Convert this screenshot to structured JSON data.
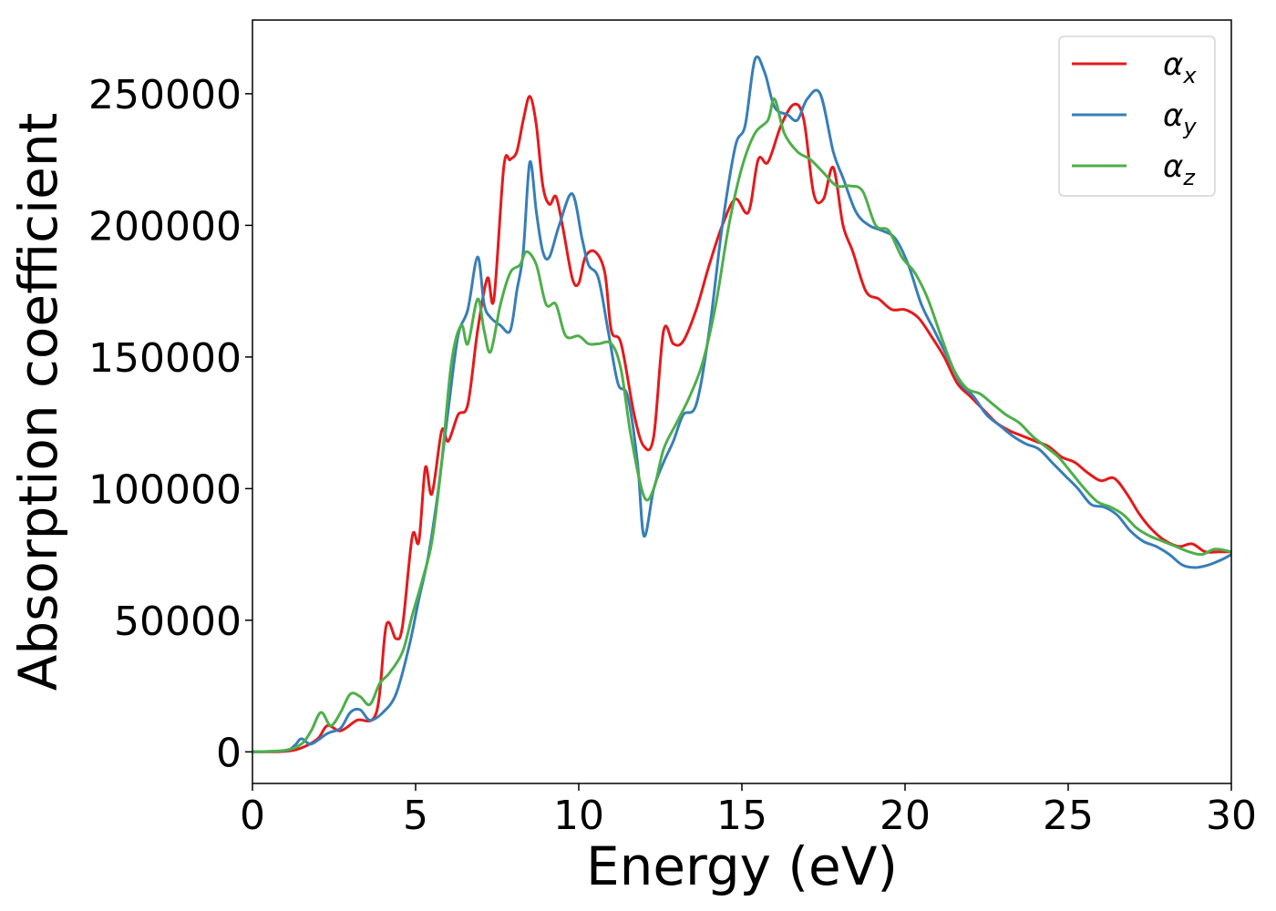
{
  "chart_data": {
    "type": "line",
    "title": "",
    "xlabel": "Energy (eV)",
    "ylabel": "Absorption coefficient",
    "xlim": [
      0,
      30
    ],
    "ylim": [
      -12000,
      278000
    ],
    "xticks": [
      0,
      5,
      10,
      15,
      20,
      25,
      30
    ],
    "yticks": [
      0,
      50000,
      100000,
      150000,
      200000,
      250000
    ],
    "grid": false,
    "legend_position": "top-right",
    "series": [
      {
        "name": "α",
        "subscript": "x",
        "color": "#e41a1c",
        "points": [
          [
            0,
            0
          ],
          [
            1,
            200
          ],
          [
            1.5,
            1500
          ],
          [
            2,
            5000
          ],
          [
            2.3,
            10000
          ],
          [
            2.7,
            8000
          ],
          [
            3.2,
            12000
          ],
          [
            3.8,
            15000
          ],
          [
            4.1,
            48000
          ],
          [
            4.4,
            43000
          ],
          [
            4.6,
            48000
          ],
          [
            4.9,
            82000
          ],
          [
            5.1,
            80000
          ],
          [
            5.3,
            108000
          ],
          [
            5.5,
            98000
          ],
          [
            5.8,
            122000
          ],
          [
            6.0,
            118000
          ],
          [
            6.3,
            128000
          ],
          [
            6.6,
            132000
          ],
          [
            6.9,
            160000
          ],
          [
            7.2,
            180000
          ],
          [
            7.4,
            172000
          ],
          [
            7.7,
            222000
          ],
          [
            7.9,
            225000
          ],
          [
            8.1,
            228000
          ],
          [
            8.3,
            240000
          ],
          [
            8.5,
            249000
          ],
          [
            8.7,
            238000
          ],
          [
            8.9,
            215000
          ],
          [
            9.1,
            208000
          ],
          [
            9.3,
            211000
          ],
          [
            9.5,
            200000
          ],
          [
            9.8,
            180000
          ],
          [
            10.0,
            178000
          ],
          [
            10.2,
            188000
          ],
          [
            10.5,
            190000
          ],
          [
            10.8,
            182000
          ],
          [
            11.0,
            160000
          ],
          [
            11.3,
            155000
          ],
          [
            11.7,
            128000
          ],
          [
            12.0,
            116000
          ],
          [
            12.3,
            120000
          ],
          [
            12.6,
            160000
          ],
          [
            12.9,
            155000
          ],
          [
            13.2,
            156000
          ],
          [
            13.6,
            168000
          ],
          [
            14.0,
            185000
          ],
          [
            14.4,
            200000
          ],
          [
            14.8,
            210000
          ],
          [
            15.2,
            205000
          ],
          [
            15.5,
            225000
          ],
          [
            15.8,
            224000
          ],
          [
            16.2,
            238000
          ],
          [
            16.6,
            246000
          ],
          [
            16.9,
            240000
          ],
          [
            17.2,
            212000
          ],
          [
            17.5,
            210000
          ],
          [
            17.8,
            222000
          ],
          [
            18.1,
            200000
          ],
          [
            18.4,
            190000
          ],
          [
            18.8,
            175000
          ],
          [
            19.2,
            172000
          ],
          [
            19.6,
            168000
          ],
          [
            20.0,
            168000
          ],
          [
            20.4,
            165000
          ],
          [
            20.8,
            158000
          ],
          [
            21.2,
            150000
          ],
          [
            21.6,
            140000
          ],
          [
            22.0,
            135000
          ],
          [
            22.4,
            130000
          ],
          [
            22.8,
            125000
          ],
          [
            23.2,
            122000
          ],
          [
            23.6,
            120000
          ],
          [
            24.0,
            118000
          ],
          [
            24.4,
            116000
          ],
          [
            24.8,
            112000
          ],
          [
            25.2,
            110000
          ],
          [
            25.6,
            106000
          ],
          [
            26.0,
            103000
          ],
          [
            26.4,
            104000
          ],
          [
            26.8,
            98000
          ],
          [
            27.2,
            90000
          ],
          [
            27.6,
            84000
          ],
          [
            28.0,
            80000
          ],
          [
            28.4,
            78000
          ],
          [
            28.8,
            79000
          ],
          [
            29.2,
            76000
          ],
          [
            29.6,
            76000
          ],
          [
            30,
            76000
          ]
        ]
      },
      {
        "name": "α",
        "subscript": "y",
        "color": "#377eb8",
        "points": [
          [
            0,
            0
          ],
          [
            1,
            500
          ],
          [
            1.3,
            2500
          ],
          [
            1.5,
            5000
          ],
          [
            1.8,
            3000
          ],
          [
            2.3,
            7000
          ],
          [
            2.7,
            9000
          ],
          [
            3.0,
            15000
          ],
          [
            3.3,
            16000
          ],
          [
            3.6,
            12000
          ],
          [
            4.0,
            15000
          ],
          [
            4.4,
            22000
          ],
          [
            4.8,
            40000
          ],
          [
            5.1,
            58000
          ],
          [
            5.4,
            75000
          ],
          [
            5.7,
            100000
          ],
          [
            6.0,
            130000
          ],
          [
            6.3,
            158000
          ],
          [
            6.6,
            168000
          ],
          [
            6.9,
            188000
          ],
          [
            7.1,
            170000
          ],
          [
            7.3,
            165000
          ],
          [
            7.6,
            162000
          ],
          [
            7.9,
            160000
          ],
          [
            8.1,
            175000
          ],
          [
            8.3,
            190000
          ],
          [
            8.5,
            224000
          ],
          [
            8.7,
            205000
          ],
          [
            8.9,
            190000
          ],
          [
            9.1,
            188000
          ],
          [
            9.4,
            200000
          ],
          [
            9.8,
            212000
          ],
          [
            10.1,
            195000
          ],
          [
            10.3,
            185000
          ],
          [
            10.6,
            180000
          ],
          [
            10.9,
            160000
          ],
          [
            11.2,
            140000
          ],
          [
            11.5,
            135000
          ],
          [
            11.8,
            110000
          ],
          [
            12.0,
            82000
          ],
          [
            12.3,
            100000
          ],
          [
            12.6,
            110000
          ],
          [
            12.9,
            118000
          ],
          [
            13.2,
            128000
          ],
          [
            13.6,
            132000
          ],
          [
            14.0,
            160000
          ],
          [
            14.4,
            200000
          ],
          [
            14.8,
            230000
          ],
          [
            15.1,
            238000
          ],
          [
            15.4,
            263000
          ],
          [
            15.7,
            258000
          ],
          [
            16.0,
            245000
          ],
          [
            16.4,
            242000
          ],
          [
            16.7,
            240000
          ],
          [
            17.0,
            248000
          ],
          [
            17.4,
            250000
          ],
          [
            17.8,
            228000
          ],
          [
            18.1,
            218000
          ],
          [
            18.5,
            205000
          ],
          [
            18.9,
            200000
          ],
          [
            19.3,
            198000
          ],
          [
            19.7,
            195000
          ],
          [
            20.1,
            185000
          ],
          [
            20.5,
            170000
          ],
          [
            20.9,
            160000
          ],
          [
            21.3,
            150000
          ],
          [
            21.7,
            140000
          ],
          [
            22.1,
            135000
          ],
          [
            22.5,
            128000
          ],
          [
            22.9,
            124000
          ],
          [
            23.3,
            120000
          ],
          [
            23.7,
            117000
          ],
          [
            24.1,
            115000
          ],
          [
            24.5,
            110000
          ],
          [
            24.9,
            105000
          ],
          [
            25.3,
            100000
          ],
          [
            25.7,
            94000
          ],
          [
            26.1,
            93000
          ],
          [
            26.5,
            90000
          ],
          [
            26.9,
            84000
          ],
          [
            27.3,
            80000
          ],
          [
            27.7,
            78000
          ],
          [
            28.1,
            75000
          ],
          [
            28.5,
            71000
          ],
          [
            28.9,
            70000
          ],
          [
            29.3,
            71000
          ],
          [
            29.7,
            73000
          ],
          [
            30,
            75000
          ]
        ]
      },
      {
        "name": "α",
        "subscript": "z",
        "color": "#4daf4a",
        "points": [
          [
            0,
            0
          ],
          [
            1,
            600
          ],
          [
            1.5,
            3000
          ],
          [
            1.8,
            8000
          ],
          [
            2.1,
            15000
          ],
          [
            2.4,
            10000
          ],
          [
            2.7,
            15000
          ],
          [
            3.0,
            22000
          ],
          [
            3.3,
            21000
          ],
          [
            3.6,
            18000
          ],
          [
            3.9,
            26000
          ],
          [
            4.2,
            30000
          ],
          [
            4.6,
            38000
          ],
          [
            4.9,
            52000
          ],
          [
            5.2,
            65000
          ],
          [
            5.5,
            80000
          ],
          [
            5.8,
            110000
          ],
          [
            6.1,
            148000
          ],
          [
            6.4,
            162000
          ],
          [
            6.6,
            155000
          ],
          [
            6.9,
            172000
          ],
          [
            7.1,
            160000
          ],
          [
            7.3,
            152000
          ],
          [
            7.6,
            170000
          ],
          [
            7.9,
            182000
          ],
          [
            8.2,
            185000
          ],
          [
            8.4,
            190000
          ],
          [
            8.7,
            185000
          ],
          [
            9.0,
            170000
          ],
          [
            9.3,
            170000
          ],
          [
            9.6,
            158000
          ],
          [
            10.0,
            158000
          ],
          [
            10.3,
            155000
          ],
          [
            10.6,
            155000
          ],
          [
            11.0,
            155000
          ],
          [
            11.3,
            145000
          ],
          [
            11.6,
            120000
          ],
          [
            12.0,
            97000
          ],
          [
            12.3,
            100000
          ],
          [
            12.6,
            115000
          ],
          [
            13.0,
            125000
          ],
          [
            13.4,
            135000
          ],
          [
            13.8,
            148000
          ],
          [
            14.2,
            170000
          ],
          [
            14.6,
            200000
          ],
          [
            15.0,
            222000
          ],
          [
            15.4,
            235000
          ],
          [
            15.8,
            240000
          ],
          [
            16.0,
            248000
          ],
          [
            16.3,
            235000
          ],
          [
            16.7,
            228000
          ],
          [
            17.1,
            225000
          ],
          [
            17.5,
            220000
          ],
          [
            17.9,
            215000
          ],
          [
            18.3,
            215000
          ],
          [
            18.7,
            213000
          ],
          [
            19.1,
            200000
          ],
          [
            19.5,
            198000
          ],
          [
            19.9,
            188000
          ],
          [
            20.3,
            182000
          ],
          [
            20.7,
            172000
          ],
          [
            21.1,
            158000
          ],
          [
            21.5,
            145000
          ],
          [
            21.9,
            138000
          ],
          [
            22.3,
            136000
          ],
          [
            22.7,
            132000
          ],
          [
            23.1,
            128000
          ],
          [
            23.5,
            125000
          ],
          [
            23.9,
            120000
          ],
          [
            24.3,
            116000
          ],
          [
            24.7,
            112000
          ],
          [
            25.1,
            106000
          ],
          [
            25.5,
            100000
          ],
          [
            25.9,
            95000
          ],
          [
            26.3,
            93000
          ],
          [
            26.7,
            90000
          ],
          [
            27.1,
            85000
          ],
          [
            27.5,
            82000
          ],
          [
            27.9,
            80000
          ],
          [
            28.3,
            78000
          ],
          [
            28.7,
            76000
          ],
          [
            29.1,
            75000
          ],
          [
            29.5,
            77000
          ],
          [
            30,
            76000
          ]
        ]
      }
    ]
  }
}
